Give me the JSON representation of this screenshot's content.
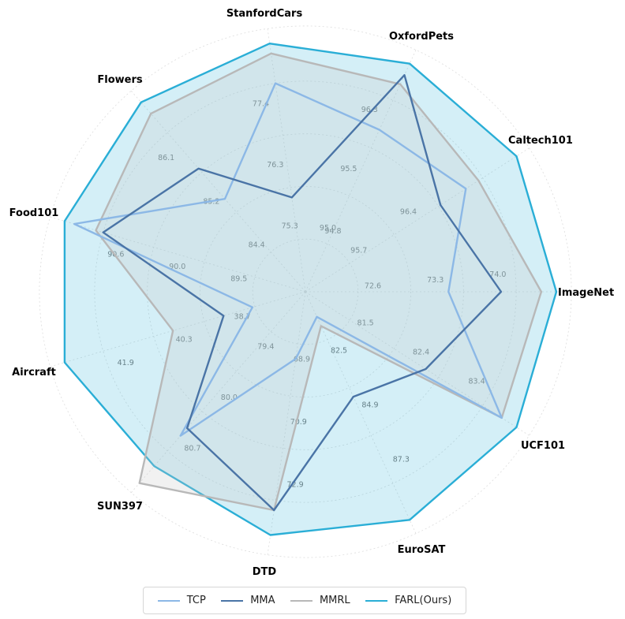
{
  "chart_data": {
    "type": "radar",
    "axes": [
      "ImageNet",
      "Caltech101",
      "OxfordPets",
      "StanfordCars",
      "Flowers",
      "Food101",
      "Aircraft",
      "SUN397",
      "DTD",
      "EuroSAT",
      "UCF101"
    ],
    "ticks": [
      [
        "72.6",
        "73.3",
        "74.0"
      ],
      [
        "95.7",
        "96.4"
      ],
      [
        "95.0",
        "95.5",
        "96.3"
      ],
      [
        "75.3",
        "76.3",
        "77.4"
      ],
      [
        "84.4",
        "85.2",
        "86.1"
      ],
      [
        "89.5",
        "90.0",
        "90.6"
      ],
      [
        "38.7",
        "40.3",
        "41.9"
      ],
      [
        "79.4",
        "80.0",
        "80.7"
      ],
      [
        "68.9",
        "70.9",
        "72.9"
      ],
      [
        "82.5",
        "84.9",
        "87.3"
      ],
      [
        "81.5",
        "82.4",
        "83.4"
      ]
    ],
    "tick_center_labels": [
      "94.8"
    ],
    "series": [
      {
        "name": "TCP",
        "color": "#8cb8e6",
        "values_normalized": [
          0.57,
          0.76,
          0.71,
          0.84,
          0.49,
          0.96,
          0.22,
          0.76,
          0.27,
          0.11,
          0.93
        ],
        "fill": false
      },
      {
        "name": "MMA",
        "color": "#4a74a6",
        "values_normalized": [
          0.78,
          0.64,
          0.95,
          0.38,
          0.65,
          0.84,
          0.34,
          0.72,
          0.88,
          0.46,
          0.57
        ],
        "fill": false
      },
      {
        "name": "MMRL",
        "color": "#b8b8b8",
        "values_normalized": [
          0.94,
          0.82,
          0.91,
          0.96,
          0.94,
          0.87,
          0.55,
          1.01,
          0.88,
          0.15,
          0.93
        ],
        "fill": true
      },
      {
        "name": "FARL(Ours)",
        "color": "#2aaed6",
        "values_normalized": [
          1.0,
          1.0,
          1.0,
          1.0,
          1.0,
          1.0,
          1.0,
          0.92,
          0.98,
          1.0,
          1.0
        ],
        "fill": true
      }
    ],
    "grid": true,
    "legend_position": "bottom-center"
  }
}
